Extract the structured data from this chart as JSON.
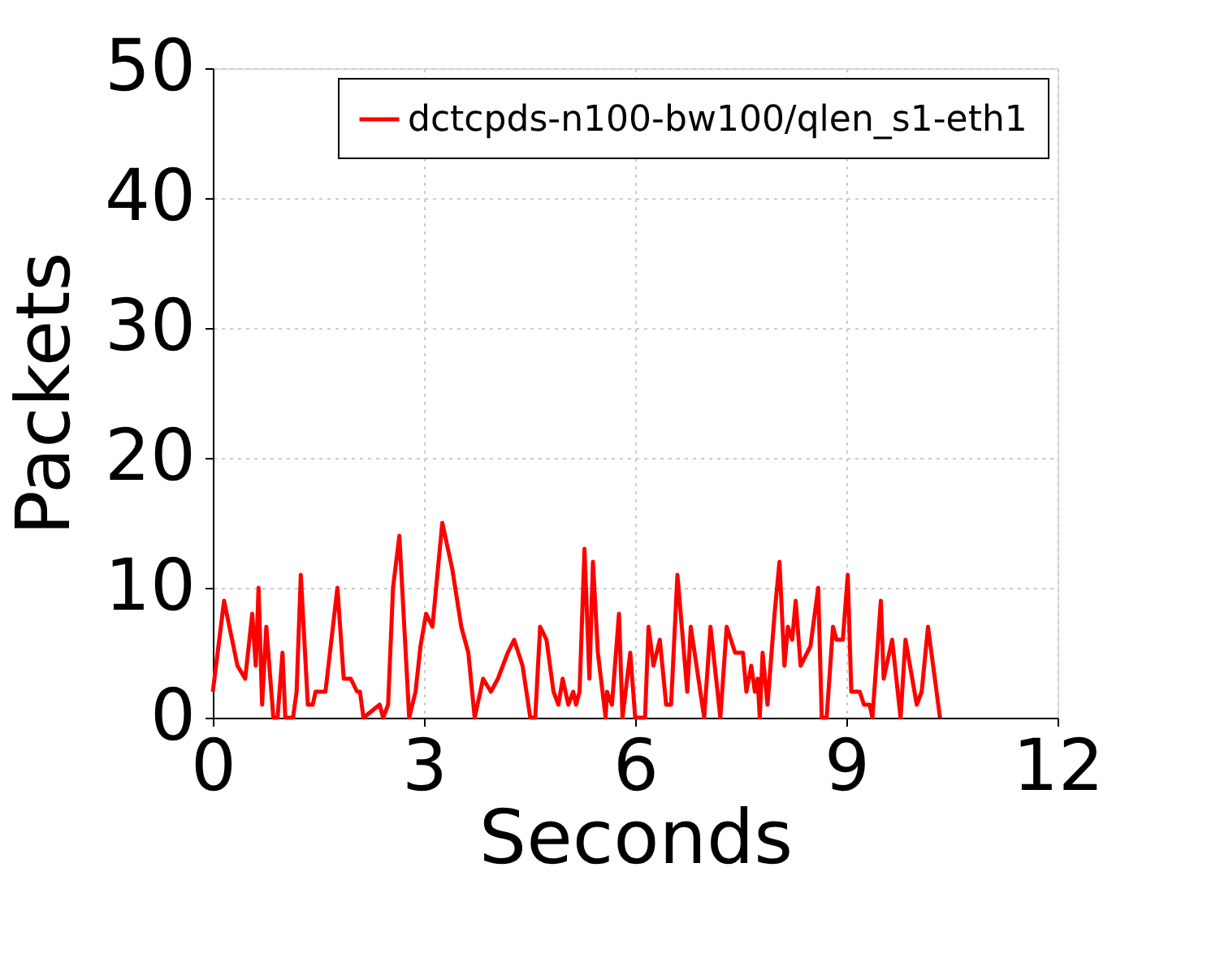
{
  "chart_data": {
    "type": "line",
    "xlabel": "Seconds",
    "ylabel": "Packets",
    "xlim": [
      0,
      12
    ],
    "ylim": [
      0,
      50
    ],
    "xticks": [
      0,
      3,
      6,
      9,
      12
    ],
    "yticks": [
      0,
      10,
      20,
      30,
      40,
      50
    ],
    "grid": true,
    "legend": "top right",
    "marker": "none",
    "line_style": "solid",
    "series": [
      {
        "name": "dctcpds-n100-bw100/qlen_s1-eth1",
        "color": "#ff0000",
        "x": [
          0,
          0.16,
          0.35,
          0.46,
          0.56,
          0.61,
          0.65,
          0.7,
          0.76,
          0.86,
          0.92,
          0.99,
          1.03,
          1.14,
          1.19,
          1.25,
          1.35,
          1.42,
          1.46,
          1.6,
          1.77,
          1.86,
          1.96,
          2.05,
          2.09,
          2.14,
          2.37,
          2.42,
          2.49,
          2.56,
          2.65,
          2.79,
          2.88,
          2.95,
          3.03,
          3.12,
          3.26,
          3.4,
          3.53,
          3.63,
          3.72,
          3.84,
          3.95,
          4.05,
          4.19,
          4.28,
          4.4,
          4.51,
          4.58,
          4.65,
          4.74,
          4.84,
          4.91,
          4.97,
          5.05,
          5.12,
          5.16,
          5.21,
          5.28,
          5.35,
          5.4,
          5.47,
          5.58,
          5.6,
          5.67,
          5.77,
          5.82,
          5.93,
          6.0,
          6.14,
          6.19,
          6.26,
          6.35,
          6.44,
          6.51,
          6.6,
          6.74,
          6.79,
          6.98,
          7.07,
          7.21,
          7.3,
          7.42,
          7.53,
          7.58,
          7.65,
          7.7,
          7.74,
          7.77,
          7.81,
          7.88,
          7.98,
          8.05,
          8.12,
          8.17,
          8.23,
          8.28,
          8.35,
          8.49,
          8.6,
          8.65,
          8.72,
          8.81,
          8.86,
          8.95,
          9.02,
          9.07,
          9.19,
          9.25,
          9.33,
          9.37,
          9.49,
          9.53,
          9.65,
          9.77,
          9.84,
          10.0,
          10.07,
          10.16,
          10.33
        ],
        "values": [
          2,
          9,
          4,
          3,
          8,
          4,
          10,
          1,
          7,
          0,
          0,
          5,
          0,
          0,
          2,
          11,
          1,
          1,
          2,
          2,
          10,
          3,
          3,
          2,
          2,
          0,
          1,
          0,
          1,
          10,
          14,
          0,
          2,
          5.5,
          8,
          7,
          15,
          11.5,
          7,
          5,
          0,
          3,
          2,
          3,
          5,
          6,
          4,
          0,
          0,
          7,
          6,
          2,
          1,
          3,
          1,
          2,
          1,
          2,
          13,
          3,
          12,
          5,
          0,
          2,
          1,
          8,
          0,
          5,
          0,
          0,
          7,
          4,
          6,
          1,
          1,
          11,
          2,
          7,
          0,
          7,
          0,
          7,
          5,
          5,
          2,
          4,
          2,
          3,
          0,
          5,
          1,
          8,
          12,
          4,
          7,
          6,
          9,
          4,
          5.5,
          10,
          0,
          0,
          7,
          6,
          6,
          11,
          2,
          2,
          1,
          1,
          0,
          9,
          3,
          6,
          0,
          6,
          1,
          2,
          7,
          0
        ]
      }
    ]
  }
}
